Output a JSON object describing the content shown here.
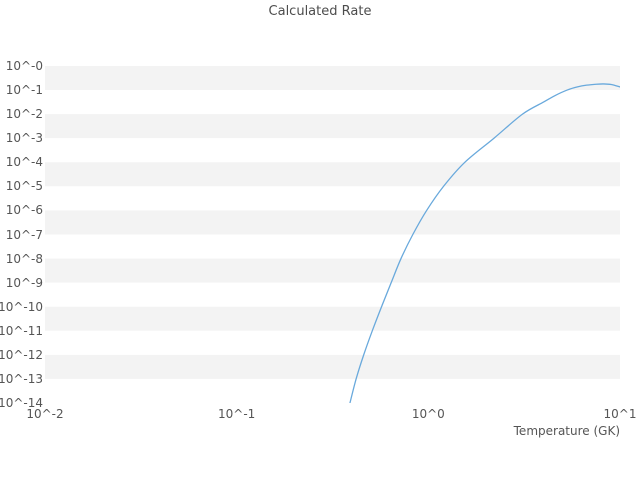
{
  "title": "Calculated Rate",
  "xlabel": "Temperature (GK)",
  "colors": {
    "line": "#69a9dc",
    "band": "#f3f3f3",
    "tick_text": "#555555",
    "title_text": "#4d4d4d",
    "background": "#ffffff"
  },
  "axes": {
    "x_tick_labels": [
      "10^-2",
      "10^-1",
      "10^0",
      "10^1"
    ],
    "x_tick_exponents": [
      -2,
      -1,
      0,
      1
    ],
    "y_tick_labels": [
      "10^-0",
      "10^-1",
      "10^-2",
      "10^-3",
      "10^-4",
      "10^-5",
      "10^-6",
      "10^-7",
      "10^-8",
      "10^-9",
      "10^-10",
      "10^-11",
      "10^-12",
      "10^-13",
      "10^-14"
    ],
    "y_tick_exponents": [
      0,
      -1,
      -2,
      -3,
      -4,
      -5,
      -6,
      -7,
      -8,
      -9,
      -10,
      -11,
      -12,
      -13,
      -14
    ]
  },
  "chart_data": {
    "type": "line",
    "title": "Calculated Rate",
    "xlabel": "Temperature (GK)",
    "ylabel": "",
    "xscale": "log",
    "yscale": "log",
    "xlim": [
      0.01,
      10
    ],
    "ylim": [
      1e-14,
      1
    ],
    "legend": "off",
    "grid": "alternating-horizontal-bands",
    "series": [
      {
        "name": "calculated-rate",
        "x": [
          0.39,
          0.42,
          0.46,
          0.51,
          0.57,
          0.64,
          0.72,
          0.83,
          0.98,
          1.2,
          1.55,
          2.2,
          3.1,
          4.0,
          4.6,
          5.3,
          6.0,
          6.7,
          7.5,
          8.2,
          9.0,
          10.0
        ],
        "y": [
          1e-14,
          1e-13,
          1e-12,
          1e-11,
          1e-10,
          1e-09,
          1e-08,
          1e-07,
          1e-06,
          1e-05,
          0.0001,
          0.001,
          0.01,
          0.032,
          0.06,
          0.1,
          0.135,
          0.16,
          0.175,
          0.18,
          0.17,
          0.135
        ]
      }
    ]
  }
}
